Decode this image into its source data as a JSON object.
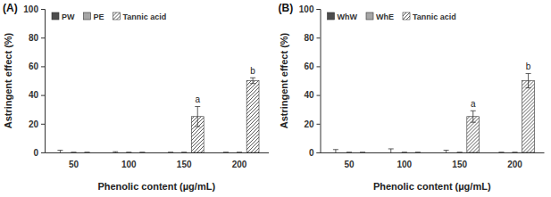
{
  "chart_data": [
    {
      "type": "bar",
      "title": "(A)",
      "x_label": "Phenolic content (µg/mL)",
      "y_label": "Astringent effect (%)",
      "categories": [
        "50",
        "100",
        "150",
        "200"
      ],
      "series": [
        {
          "name": "PW",
          "color": "#4d4d4d",
          "values": [
            0,
            0,
            0,
            0
          ],
          "errors": [
            1.5,
            0.5,
            0,
            0
          ]
        },
        {
          "name": "PE",
          "color": "#a6a6a6",
          "values": [
            0,
            0,
            0,
            0
          ],
          "errors": [
            0,
            0,
            0,
            0
          ]
        },
        {
          "name": "Tannic acid",
          "color": "#ffffff",
          "marker": "hatch",
          "values": [
            0,
            0,
            25,
            50
          ],
          "errors": [
            0,
            0,
            7,
            2
          ],
          "letters": [
            null,
            null,
            "a",
            "b"
          ]
        }
      ],
      "ylim": [
        0,
        100
      ],
      "yticks": [
        0,
        20,
        40,
        60,
        80,
        100
      ],
      "grid": false,
      "legend": "top-left"
    },
    {
      "type": "bar",
      "title": "(B)",
      "x_label": "Phenolic content (µg/mL)",
      "y_label": "Astringent effect (%)",
      "categories": [
        "50",
        "100",
        "150",
        "200"
      ],
      "series": [
        {
          "name": "WhW",
          "color": "#4d4d4d",
          "values": [
            0,
            0,
            0,
            0
          ],
          "errors": [
            2,
            2.5,
            1.5,
            0
          ]
        },
        {
          "name": "WhE",
          "color": "#a6a6a6",
          "values": [
            0,
            0,
            0,
            0
          ],
          "errors": [
            0,
            0,
            0,
            0
          ]
        },
        {
          "name": "Tannic acid",
          "color": "#ffffff",
          "marker": "hatch",
          "values": [
            0,
            0,
            25,
            50
          ],
          "errors": [
            0,
            0,
            4,
            5
          ],
          "letters": [
            null,
            null,
            "a",
            "b"
          ]
        }
      ],
      "ylim": [
        0,
        100
      ],
      "yticks": [
        0,
        20,
        40,
        60,
        80,
        100
      ],
      "grid": false,
      "legend": "top-left"
    }
  ]
}
